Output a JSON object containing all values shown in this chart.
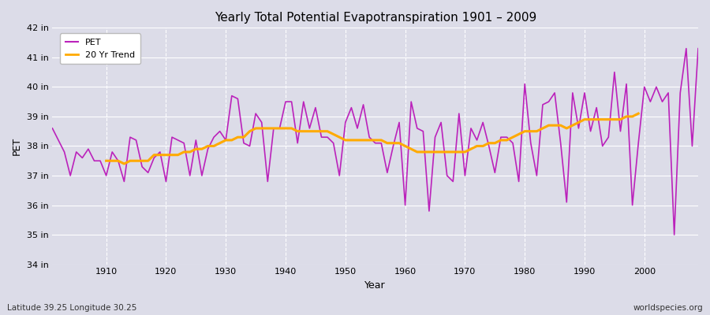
{
  "title": "Yearly Total Potential Evapotranspiration 1901 – 2009",
  "xlabel": "Year",
  "ylabel": "PET",
  "subtitle_left": "Latitude 39.25 Longitude 30.25",
  "subtitle_right": "worldspecies.org",
  "pet_color": "#bb22bb",
  "trend_color": "#ffaa00",
  "bg_color": "#dcdce8",
  "ylim": [
    34,
    42
  ],
  "yticks": [
    34,
    35,
    36,
    37,
    38,
    39,
    40,
    41,
    42
  ],
  "ytick_labels": [
    "34 in",
    "35 in",
    "36 in",
    "37 in",
    "38 in",
    "39 in",
    "40 in",
    "41 in",
    "42 in"
  ],
  "years": [
    1901,
    1902,
    1903,
    1904,
    1905,
    1906,
    1907,
    1908,
    1909,
    1910,
    1911,
    1912,
    1913,
    1914,
    1915,
    1916,
    1917,
    1918,
    1919,
    1920,
    1921,
    1922,
    1923,
    1924,
    1925,
    1926,
    1927,
    1928,
    1929,
    1930,
    1931,
    1932,
    1933,
    1934,
    1935,
    1936,
    1937,
    1938,
    1939,
    1940,
    1941,
    1942,
    1943,
    1944,
    1945,
    1946,
    1947,
    1948,
    1949,
    1950,
    1951,
    1952,
    1953,
    1954,
    1955,
    1956,
    1957,
    1958,
    1959,
    1960,
    1961,
    1962,
    1963,
    1964,
    1965,
    1966,
    1967,
    1968,
    1969,
    1970,
    1971,
    1972,
    1973,
    1974,
    1975,
    1976,
    1977,
    1978,
    1979,
    1980,
    1981,
    1982,
    1983,
    1984,
    1985,
    1986,
    1987,
    1988,
    1989,
    1990,
    1991,
    1992,
    1993,
    1994,
    1995,
    1996,
    1997,
    1998,
    1999,
    2000,
    2001,
    2002,
    2003,
    2004,
    2005,
    2006,
    2007,
    2008,
    2009
  ],
  "pet_values": [
    38.6,
    38.2,
    37.8,
    37.0,
    37.8,
    37.6,
    37.9,
    37.5,
    37.5,
    37.0,
    37.8,
    37.5,
    36.8,
    38.3,
    38.2,
    37.3,
    37.1,
    37.6,
    37.8,
    36.8,
    38.3,
    38.2,
    38.1,
    37.0,
    38.2,
    37.0,
    37.9,
    38.3,
    38.5,
    38.2,
    39.7,
    39.6,
    38.1,
    38.0,
    39.1,
    38.8,
    36.8,
    38.6,
    38.6,
    39.5,
    39.5,
    38.1,
    39.5,
    38.6,
    39.3,
    38.3,
    38.3,
    38.1,
    37.0,
    38.8,
    39.3,
    38.6,
    39.4,
    38.3,
    38.1,
    38.1,
    37.1,
    38.0,
    38.8,
    36.0,
    39.5,
    38.6,
    38.5,
    35.8,
    38.3,
    38.8,
    37.0,
    36.8,
    39.1,
    37.0,
    38.6,
    38.2,
    38.8,
    38.0,
    37.1,
    38.3,
    38.3,
    38.1,
    36.8,
    40.1,
    38.1,
    37.0,
    39.4,
    39.5,
    39.8,
    38.1,
    36.1,
    39.8,
    38.6,
    39.8,
    38.5,
    39.3,
    38.0,
    38.3,
    40.5,
    38.5,
    40.1,
    36.0,
    38.1,
    40.0,
    39.5,
    40.0,
    39.5,
    39.8,
    35.0,
    39.8,
    41.3,
    38.0,
    41.3
  ],
  "trend_values": [
    null,
    null,
    null,
    null,
    null,
    null,
    null,
    null,
    null,
    37.5,
    37.5,
    37.5,
    37.4,
    37.5,
    37.5,
    37.5,
    37.5,
    37.7,
    37.7,
    37.7,
    37.7,
    37.7,
    37.8,
    37.8,
    37.9,
    37.9,
    38.0,
    38.0,
    38.1,
    38.2,
    38.2,
    38.3,
    38.3,
    38.5,
    38.6,
    38.6,
    38.6,
    38.6,
    38.6,
    38.6,
    38.6,
    38.5,
    38.5,
    38.5,
    38.5,
    38.5,
    38.5,
    38.4,
    38.3,
    38.2,
    38.2,
    38.2,
    38.2,
    38.2,
    38.2,
    38.2,
    38.1,
    38.1,
    38.1,
    38.0,
    37.9,
    37.8,
    37.8,
    37.8,
    37.8,
    37.8,
    37.8,
    37.8,
    37.8,
    37.8,
    37.9,
    38.0,
    38.0,
    38.1,
    38.1,
    38.2,
    38.2,
    38.3,
    38.4,
    38.5,
    38.5,
    38.5,
    38.6,
    38.7,
    38.7,
    38.7,
    38.6,
    38.7,
    38.8,
    38.9,
    38.9,
    38.9,
    38.9,
    38.9,
    38.9,
    38.9,
    39.0,
    39.0,
    39.1,
    null,
    null,
    null,
    null,
    null,
    null,
    null,
    null,
    null,
    null
  ],
  "xlim": [
    1901,
    2009
  ],
  "xticks": [
    1910,
    1920,
    1930,
    1940,
    1950,
    1960,
    1970,
    1980,
    1990,
    2000
  ]
}
